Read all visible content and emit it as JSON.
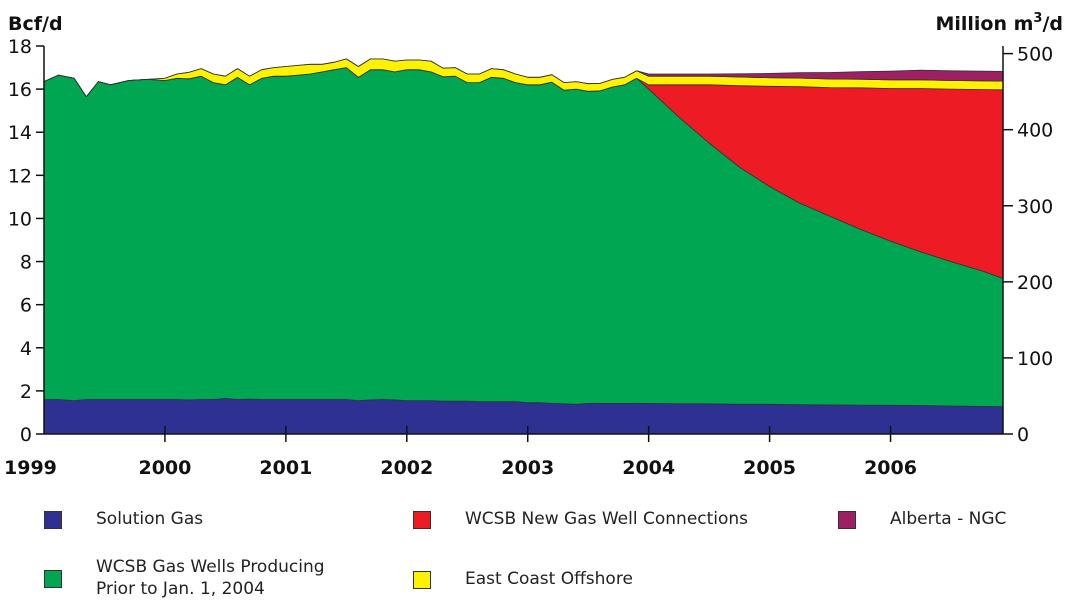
{
  "chart_data": {
    "type": "area",
    "stacked": true,
    "left_axis_label": "Bcf/d",
    "right_axis_label_main": "Million m",
    "right_axis_label_sup": "3",
    "right_axis_label_end": "/d",
    "left_ticks": [
      "0",
      "2",
      "4",
      "6",
      "8",
      "10",
      "12",
      "14",
      "16",
      "18"
    ],
    "right_ticks": [
      "0",
      "100",
      "200",
      "300",
      "400",
      "500"
    ],
    "year_labels": [
      "1999",
      "2000",
      "2001",
      "2002",
      "2003",
      "2004",
      "2005",
      "2006"
    ],
    "ylim": [
      0,
      18
    ],
    "xlim": [
      1999.0,
      2006.93
    ],
    "grid": false,
    "legend_position": "bottom",
    "x": [
      1999.0,
      1999.12,
      1999.25,
      1999.35,
      1999.45,
      1999.55,
      1999.7,
      1999.85,
      2000.0,
      2000.1,
      2000.2,
      2000.3,
      2000.4,
      2000.5,
      2000.6,
      2000.7,
      2000.8,
      2000.9,
      2001.0,
      2001.1,
      2001.2,
      2001.3,
      2001.4,
      2001.5,
      2001.6,
      2001.7,
      2001.8,
      2001.9,
      2002.0,
      2002.1,
      2002.2,
      2002.3,
      2002.4,
      2002.5,
      2002.6,
      2002.7,
      2002.8,
      2002.9,
      2003.0,
      2003.1,
      2003.2,
      2003.3,
      2003.4,
      2003.5,
      2003.6,
      2003.7,
      2003.8,
      2003.9,
      2004.0,
      2004.25,
      2004.5,
      2004.75,
      2005.0,
      2005.25,
      2005.5,
      2005.75,
      2006.0,
      2006.25,
      2006.5,
      2006.75,
      2006.93
    ],
    "series": [
      {
        "name": "Solution Gas",
        "color": "#2e3192",
        "values": [
          1.6,
          1.6,
          1.55,
          1.6,
          1.6,
          1.6,
          1.6,
          1.6,
          1.6,
          1.6,
          1.58,
          1.6,
          1.6,
          1.65,
          1.6,
          1.62,
          1.6,
          1.6,
          1.6,
          1.6,
          1.6,
          1.6,
          1.6,
          1.6,
          1.55,
          1.58,
          1.6,
          1.58,
          1.55,
          1.55,
          1.55,
          1.52,
          1.52,
          1.52,
          1.5,
          1.5,
          1.5,
          1.5,
          1.45,
          1.45,
          1.42,
          1.4,
          1.38,
          1.42,
          1.42,
          1.42,
          1.42,
          1.42,
          1.42,
          1.4,
          1.4,
          1.38,
          1.38,
          1.36,
          1.35,
          1.34,
          1.33,
          1.32,
          1.3,
          1.28,
          1.27
        ]
      },
      {
        "name": "WCSB Gas Wells Producing Prior to Jan. 1, 2004",
        "label_lines": [
          "WCSB Gas Wells Producing",
          "Prior to Jan. 1, 2004"
        ],
        "color": "#00a651",
        "values": [
          14.75,
          15.05,
          14.95,
          14.05,
          14.75,
          14.6,
          14.8,
          14.85,
          14.8,
          14.9,
          14.9,
          15.0,
          14.7,
          14.55,
          14.95,
          14.58,
          14.9,
          15.0,
          15.0,
          15.05,
          15.1,
          15.2,
          15.3,
          15.4,
          15.0,
          15.32,
          15.3,
          15.22,
          15.35,
          15.35,
          15.25,
          15.05,
          15.08,
          14.78,
          14.8,
          15.05,
          15.0,
          14.8,
          14.75,
          14.75,
          14.9,
          14.55,
          14.62,
          14.48,
          14.5,
          14.68,
          14.78,
          15.08,
          14.58,
          13.3,
          12.1,
          11.0,
          10.1,
          9.35,
          8.75,
          8.16,
          7.62,
          7.13,
          6.7,
          6.3,
          5.95
        ]
      },
      {
        "name": "WCSB New Gas Well Connections",
        "color": "#ed1c24",
        "values": [
          0,
          0,
          0,
          0,
          0,
          0,
          0,
          0,
          0,
          0,
          0,
          0,
          0,
          0,
          0,
          0,
          0,
          0,
          0,
          0,
          0,
          0,
          0,
          0,
          0,
          0,
          0,
          0,
          0,
          0,
          0,
          0,
          0,
          0,
          0,
          0,
          0,
          0,
          0,
          0,
          0,
          0,
          0,
          0,
          0,
          0,
          0,
          0,
          0.2,
          1.5,
          2.7,
          3.78,
          4.65,
          5.4,
          5.97,
          6.56,
          7.08,
          7.58,
          8.0,
          8.4,
          8.75
        ]
      },
      {
        "name": "East Coast Offshore",
        "color": "#fff200",
        "values": [
          0,
          0,
          0,
          0,
          0,
          0,
          0,
          0,
          0.1,
          0.2,
          0.3,
          0.35,
          0.4,
          0.4,
          0.4,
          0.4,
          0.4,
          0.4,
          0.45,
          0.45,
          0.45,
          0.35,
          0.35,
          0.4,
          0.5,
          0.5,
          0.5,
          0.5,
          0.45,
          0.45,
          0.5,
          0.4,
          0.4,
          0.4,
          0.4,
          0.4,
          0.4,
          0.4,
          0.35,
          0.35,
          0.35,
          0.35,
          0.35,
          0.35,
          0.35,
          0.35,
          0.35,
          0.35,
          0.4,
          0.4,
          0.4,
          0.4,
          0.4,
          0.4,
          0.4,
          0.4,
          0.4,
          0.4,
          0.4,
          0.4,
          0.4
        ]
      },
      {
        "name": "Alberta - NGC",
        "color": "#9e1f63",
        "values": [
          0,
          0,
          0,
          0,
          0,
          0,
          0,
          0,
          0,
          0,
          0,
          0,
          0,
          0,
          0,
          0,
          0,
          0,
          0,
          0,
          0,
          0,
          0,
          0,
          0,
          0,
          0,
          0,
          0,
          0,
          0,
          0,
          0,
          0,
          0,
          0,
          0,
          0,
          0,
          0,
          0,
          0,
          0,
          0,
          0,
          0,
          0,
          0,
          0.1,
          0.1,
          0.1,
          0.15,
          0.2,
          0.25,
          0.3,
          0.35,
          0.4,
          0.45,
          0.45,
          0.45,
          0.45
        ]
      }
    ]
  }
}
